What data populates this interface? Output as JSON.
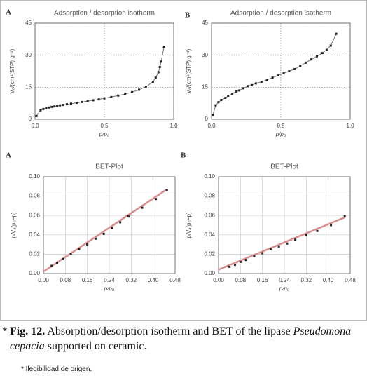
{
  "chart_data": [
    {
      "type": "line",
      "panel": "A",
      "title": "Adsorption / desorption isotherm",
      "x_label": "p/p₀",
      "y_label": "Vₐ/(cm³(STP) g⁻¹)",
      "color": "#222",
      "x": [
        0.01,
        0.04,
        0.06,
        0.08,
        0.1,
        0.12,
        0.14,
        0.16,
        0.18,
        0.2,
        0.23,
        0.26,
        0.3,
        0.34,
        0.38,
        0.42,
        0.46,
        0.5,
        0.55,
        0.6,
        0.65,
        0.7,
        0.75,
        0.8,
        0.85,
        0.87,
        0.89,
        0.9,
        0.91,
        0.93
      ],
      "values": [
        1.5,
        4.2,
        4.8,
        5.2,
        5.5,
        5.8,
        6.0,
        6.2,
        6.5,
        6.7,
        7.0,
        7.3,
        7.7,
        8.1,
        8.5,
        8.9,
        9.3,
        9.8,
        10.4,
        11.1,
        11.8,
        12.7,
        13.8,
        15.2,
        17.5,
        19.5,
        22,
        24.5,
        27,
        34
      ],
      "xlim": [
        0,
        1
      ],
      "ylim": [
        0,
        45
      ],
      "xticks": [
        {
          "value": 0,
          "label": "0.0"
        },
        {
          "value": 0.5,
          "label": "0.5"
        },
        {
          "value": 1,
          "label": "1.0"
        }
      ],
      "yticks": [
        0,
        15,
        30,
        45
      ],
      "grid": "dotted"
    },
    {
      "type": "line",
      "panel": "B",
      "title": "Adsorption / desorption isotherm",
      "x_label": "p/p₀",
      "y_label": "Vₐ/(cm³(STP) g⁻¹)",
      "color": "#222",
      "x": [
        0.01,
        0.03,
        0.05,
        0.07,
        0.1,
        0.12,
        0.15,
        0.18,
        0.2,
        0.23,
        0.26,
        0.29,
        0.32,
        0.36,
        0.4,
        0.44,
        0.48,
        0.52,
        0.56,
        0.6,
        0.64,
        0.68,
        0.72,
        0.76,
        0.8,
        0.83,
        0.86,
        0.9
      ],
      "values": [
        2,
        6.5,
        8,
        9,
        10,
        11,
        12,
        13,
        13.5,
        14.5,
        15.5,
        16,
        16.8,
        17.5,
        18.5,
        19.5,
        20.5,
        21.5,
        22.5,
        23.5,
        25,
        26.5,
        28,
        29.5,
        31,
        32.5,
        34.5,
        40
      ],
      "xlim": [
        0,
        1
      ],
      "ylim": [
        0,
        45
      ],
      "xticks": [
        {
          "value": 0,
          "label": "0.0"
        },
        {
          "value": 0.5,
          "label": "0.5"
        },
        {
          "value": 1,
          "label": "1.0"
        }
      ],
      "yticks": [
        0,
        15,
        30,
        45
      ],
      "grid": "dotted"
    },
    {
      "type": "scatter",
      "panel": "A",
      "title": "BET-Plot",
      "x_label": "p/p₀",
      "y_label": "p/Vₐ(p₀−p)",
      "color": "#222",
      "x": [
        0.03,
        0.05,
        0.07,
        0.1,
        0.13,
        0.16,
        0.19,
        0.22,
        0.25,
        0.28,
        0.31,
        0.36,
        0.41,
        0.45
      ],
      "values": [
        0.008,
        0.011,
        0.015,
        0.02,
        0.025,
        0.03,
        0.036,
        0.041,
        0.047,
        0.053,
        0.059,
        0.068,
        0.077,
        0.086
      ],
      "fit": {
        "x": [
          0,
          0.45
        ],
        "values": [
          0.002,
          0.087
        ],
        "color": "#d98c8c"
      },
      "xlim": [
        0,
        0.48
      ],
      "ylim": [
        0,
        0.1
      ],
      "xticks": [
        {
          "value": 0,
          "label": "0.00"
        },
        {
          "value": 0.08,
          "label": "0.08"
        },
        {
          "value": 0.16,
          "label": "0.16"
        },
        {
          "value": 0.24,
          "label": "0.24"
        },
        {
          "value": 0.32,
          "label": "0.32"
        },
        {
          "value": 0.4,
          "label": "0.40"
        },
        {
          "value": 0.48,
          "label": "0.48"
        }
      ],
      "yticks": [
        {
          "value": 0,
          "label": "0.00"
        },
        {
          "value": 0.02,
          "label": "0.02"
        },
        {
          "value": 0.04,
          "label": "0.04"
        },
        {
          "value": 0.06,
          "label": "0.06"
        },
        {
          "value": 0.08,
          "label": "0.08"
        },
        {
          "value": 0.1,
          "label": "0.10"
        }
      ],
      "grid": "solid"
    },
    {
      "type": "scatter",
      "panel": "B",
      "title": "BET-Plot",
      "x_label": "p/p₀",
      "y_label": "p/Vₐ(p₀−p)",
      "color": "#222",
      "x": [
        0.04,
        0.06,
        0.08,
        0.1,
        0.13,
        0.16,
        0.19,
        0.22,
        0.25,
        0.28,
        0.32,
        0.36,
        0.41,
        0.46
      ],
      "values": [
        0.007,
        0.009,
        0.012,
        0.014,
        0.018,
        0.021,
        0.025,
        0.028,
        0.031,
        0.035,
        0.04,
        0.044,
        0.05,
        0.059
      ],
      "fit": {
        "x": [
          0,
          0.46
        ],
        "values": [
          0.004,
          0.058
        ],
        "color": "#d98c8c"
      },
      "xlim": [
        0,
        0.48
      ],
      "ylim": [
        0,
        0.1
      ],
      "xticks": [
        {
          "value": 0,
          "label": "0.00"
        },
        {
          "value": 0.08,
          "label": "0.08"
        },
        {
          "value": 0.16,
          "label": "0.16"
        },
        {
          "value": 0.24,
          "label": "0.24"
        },
        {
          "value": 0.32,
          "label": "0.32"
        },
        {
          "value": 0.4,
          "label": "0.40"
        },
        {
          "value": 0.48,
          "label": "0.48"
        }
      ],
      "yticks": [
        {
          "value": 0,
          "label": "0.00"
        },
        {
          "value": 0.02,
          "label": "0.02"
        },
        {
          "value": 0.04,
          "label": "0.04"
        },
        {
          "value": 0.06,
          "label": "0.06"
        },
        {
          "value": 0.08,
          "label": "0.08"
        },
        {
          "value": 0.1,
          "label": "0.10"
        }
      ],
      "grid": "solid"
    }
  ],
  "caption": {
    "marker": "*",
    "label": "Fig. 12.",
    "text": "Absorption/desorption isotherm and BET of the lipase",
    "species": "Pseudomona cepacia",
    "text_end": "supported on ceramic."
  },
  "note": "* Ilegibilidad de origen."
}
